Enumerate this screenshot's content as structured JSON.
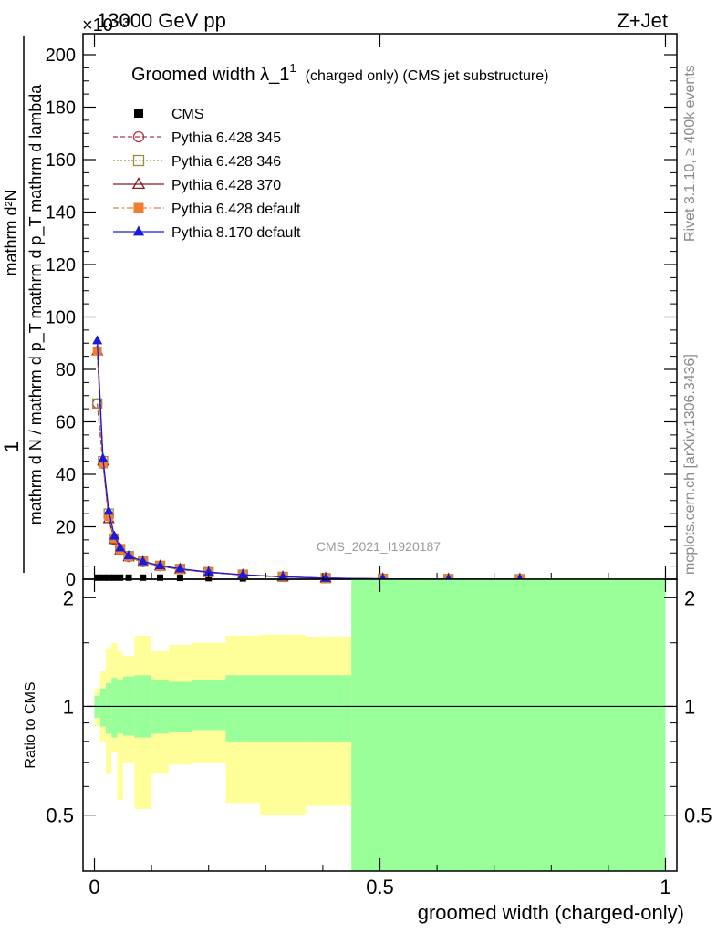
{
  "header": {
    "left_label": "13000 GeV pp",
    "right_label": "Z+Jet",
    "exponent_label": "×10⁻³"
  },
  "side": {
    "rivet_label": "Rivet 3.1.10, ≥ 400k events",
    "mcplots_label": "mcplots.cern.ch [arXiv:1306.3436]"
  },
  "chart_data": [
    {
      "type": "line",
      "title": "Groomed width λ_1¹ (charged only) (CMS jet substructure)",
      "title_main": "Groomed width λ_1",
      "title_sup": "1",
      "title_rest": "(charged only) (CMS jet substructure)",
      "ylabel_top": "1",
      "ylabel_numerator": "mathrm d²N",
      "ylabel_denominator": "mathrm d N / mathrm d p_T mathrm d p_T mathrm d lambda",
      "watermark": "CMS_2021_I1920187",
      "xlim": [
        -0.02,
        1.02
      ],
      "ylim": [
        0,
        208
      ],
      "y_exponent": "×10⁻³",
      "yticks": [
        0,
        20,
        40,
        60,
        80,
        100,
        120,
        140,
        160,
        180,
        200
      ],
      "ytick_labels": [
        "0",
        "20",
        "40",
        "60",
        "80",
        "100",
        "120",
        "140",
        "160",
        "180",
        "200"
      ],
      "legend_position": "top-left",
      "series": [
        {
          "name": "CMS",
          "color": "#000000",
          "marker": "square-filled",
          "x": [
            0.005,
            0.015,
            0.025,
            0.035,
            0.045,
            0.06,
            0.085,
            0.115,
            0.15,
            0.2,
            0.26,
            0.33,
            0.405,
            0.505,
            0.62,
            0.745
          ],
          "values": [
            0.6,
            0.6,
            0.6,
            0.6,
            0.6,
            0.6,
            0.6,
            0.6,
            0.5,
            0.4,
            0.3,
            0.2,
            0.1,
            0.05,
            0.02,
            0.01
          ]
        },
        {
          "name": "Pythia 6.428 345",
          "color": "#b5364a",
          "marker": "circle-open",
          "dash": "5,3",
          "x": [
            0.005,
            0.015,
            0.025,
            0.035,
            0.045,
            0.06,
            0.085,
            0.115,
            0.15,
            0.2,
            0.26,
            0.33,
            0.405,
            0.505,
            0.62,
            0.745
          ],
          "values": [
            67,
            44,
            24,
            15,
            11,
            8.5,
            6.5,
            5,
            3.8,
            2.6,
            1.6,
            0.9,
            0.4,
            0.15,
            0.05,
            0.02
          ]
        },
        {
          "name": "Pythia 6.428 346",
          "color": "#a08a3c",
          "marker": "square-open",
          "dash": "2,2",
          "x": [
            0.005,
            0.015,
            0.025,
            0.035,
            0.045,
            0.06,
            0.085,
            0.115,
            0.15,
            0.2,
            0.26,
            0.33,
            0.405,
            0.505,
            0.62,
            0.745
          ],
          "values": [
            67,
            45,
            25,
            15.5,
            11.5,
            8.8,
            6.7,
            5.1,
            3.9,
            2.7,
            1.7,
            0.9,
            0.4,
            0.15,
            0.05,
            0.02
          ]
        },
        {
          "name": "Pythia 6.428 370",
          "color": "#8b1a1a",
          "marker": "triangle-open",
          "dash": "",
          "x": [
            0.005,
            0.015,
            0.025,
            0.035,
            0.045,
            0.06,
            0.085,
            0.115,
            0.15,
            0.2,
            0.26,
            0.33,
            0.405,
            0.505,
            0.62,
            0.745
          ],
          "values": [
            87,
            45,
            23,
            15,
            11,
            8.5,
            6.5,
            5,
            3.8,
            2.6,
            1.6,
            0.9,
            0.4,
            0.15,
            0.05,
            0.02
          ]
        },
        {
          "name": "Pythia 6.428 default",
          "color": "#f07e2e",
          "marker": "square-filled",
          "dash": "7,3,2,3",
          "x": [
            0.005,
            0.015,
            0.025,
            0.035,
            0.045,
            0.06,
            0.085,
            0.115,
            0.15,
            0.2,
            0.26,
            0.33,
            0.405,
            0.505,
            0.62,
            0.745
          ],
          "values": [
            87,
            44,
            24,
            15.5,
            11.2,
            8.6,
            6.6,
            5,
            3.8,
            2.6,
            1.6,
            0.9,
            0.4,
            0.15,
            0.05,
            0.02
          ]
        },
        {
          "name": "Pythia 8.170 default",
          "color": "#1a1adf",
          "marker": "triangle-filled",
          "dash": "",
          "x": [
            0.005,
            0.015,
            0.025,
            0.035,
            0.045,
            0.06,
            0.085,
            0.115,
            0.15,
            0.2,
            0.26,
            0.33,
            0.405,
            0.505,
            0.62,
            0.745
          ],
          "values": [
            91,
            46,
            26,
            16.5,
            12,
            9,
            6.8,
            5.2,
            4,
            2.7,
            1.7,
            0.9,
            0.4,
            0.15,
            0.05,
            0.02
          ]
        }
      ]
    },
    {
      "type": "area",
      "ylabel": "Ratio to CMS",
      "xlabel": "groomed width (charged-only)",
      "xlim": [
        -0.02,
        1.02
      ],
      "ylim": [
        0.35,
        2.25
      ],
      "reference_value": 1,
      "xticks": [
        0,
        0.5,
        1
      ],
      "xtick_labels": [
        "0",
        "0.5",
        "1"
      ],
      "yticks": [
        0.5,
        1,
        2
      ],
      "ytick_labels": [
        "0.5",
        "1",
        "2"
      ],
      "bands": [
        {
          "name": "stat+syst",
          "color": "#ffff99",
          "bins": [
            {
              "x0": 0.0,
              "x1": 0.01,
              "lo": 0.88,
              "hi": 1.12
            },
            {
              "x0": 0.01,
              "x1": 0.02,
              "lo": 0.8,
              "hi": 1.25
            },
            {
              "x0": 0.02,
              "x1": 0.03,
              "lo": 0.65,
              "hi": 1.45
            },
            {
              "x0": 0.03,
              "x1": 0.04,
              "lo": 0.75,
              "hi": 1.5
            },
            {
              "x0": 0.04,
              "x1": 0.05,
              "lo": 0.55,
              "hi": 1.42
            },
            {
              "x0": 0.05,
              "x1": 0.07,
              "lo": 0.7,
              "hi": 1.38
            },
            {
              "x0": 0.07,
              "x1": 0.1,
              "lo": 0.52,
              "hi": 1.57
            },
            {
              "x0": 0.1,
              "x1": 0.13,
              "lo": 0.65,
              "hi": 1.42
            },
            {
              "x0": 0.13,
              "x1": 0.17,
              "lo": 0.69,
              "hi": 1.48
            },
            {
              "x0": 0.17,
              "x1": 0.23,
              "lo": 0.7,
              "hi": 1.5
            },
            {
              "x0": 0.23,
              "x1": 0.29,
              "lo": 0.54,
              "hi": 1.57
            },
            {
              "x0": 0.29,
              "x1": 0.37,
              "lo": 0.5,
              "hi": 1.58
            },
            {
              "x0": 0.37,
              "x1": 0.45,
              "lo": 0.53,
              "hi": 1.56
            },
            {
              "x0": 0.45,
              "x1": 1.0,
              "lo": 0.35,
              "hi": 2.25
            }
          ]
        },
        {
          "name": "stat",
          "color": "#99ff99",
          "bins": [
            {
              "x0": 0.0,
              "x1": 0.01,
              "lo": 0.93,
              "hi": 1.07
            },
            {
              "x0": 0.01,
              "x1": 0.02,
              "lo": 0.88,
              "hi": 1.12
            },
            {
              "x0": 0.02,
              "x1": 0.03,
              "lo": 0.84,
              "hi": 1.16
            },
            {
              "x0": 0.03,
              "x1": 0.04,
              "lo": 0.82,
              "hi": 1.2
            },
            {
              "x0": 0.04,
              "x1": 0.05,
              "lo": 0.84,
              "hi": 1.18
            },
            {
              "x0": 0.05,
              "x1": 0.07,
              "lo": 0.83,
              "hi": 1.21
            },
            {
              "x0": 0.07,
              "x1": 0.1,
              "lo": 0.82,
              "hi": 1.22
            },
            {
              "x0": 0.1,
              "x1": 0.13,
              "lo": 0.84,
              "hi": 1.18
            },
            {
              "x0": 0.13,
              "x1": 0.17,
              "lo": 0.85,
              "hi": 1.17
            },
            {
              "x0": 0.17,
              "x1": 0.23,
              "lo": 0.86,
              "hi": 1.18
            },
            {
              "x0": 0.23,
              "x1": 0.29,
              "lo": 0.8,
              "hi": 1.22
            },
            {
              "x0": 0.29,
              "x1": 0.37,
              "lo": 0.8,
              "hi": 1.22
            },
            {
              "x0": 0.37,
              "x1": 0.45,
              "lo": 0.8,
              "hi": 1.22
            },
            {
              "x0": 0.45,
              "x1": 1.0,
              "lo": 0.35,
              "hi": 2.25
            }
          ]
        }
      ]
    }
  ]
}
